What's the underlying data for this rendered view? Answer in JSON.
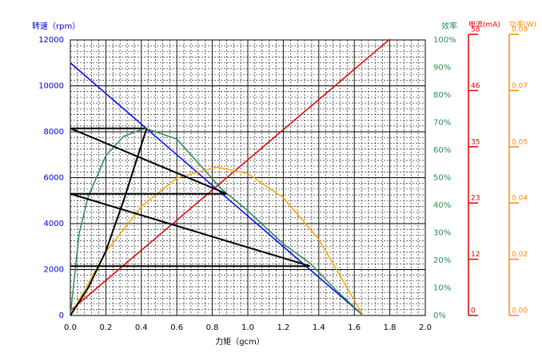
{
  "chart_data": {
    "type": "line",
    "y_title": "转速（rpm）",
    "x_title": "力矩（gcm）",
    "y2_title": "效率",
    "y3_title": "电流(mA)",
    "y4_title": "功率(W)",
    "xlim": [
      0,
      2.0
    ],
    "xticks": [
      {
        "value": 0,
        "label": "0.0"
      },
      0.2,
      0.4,
      0.6,
      0.8,
      {
        "value": 1,
        "label": "1.0"
      },
      1.2,
      1.4,
      1.6,
      1.8,
      {
        "value": 2,
        "label": "2.0"
      }
    ],
    "ylim": [
      0,
      12000
    ],
    "yticks": [
      0,
      2000,
      4000,
      6000,
      8000,
      10000,
      12000
    ],
    "y2lim": [
      0,
      100
    ],
    "y2ticks": [
      {
        "value": 0,
        "label": "0%"
      },
      {
        "value": 10,
        "label": "10%"
      },
      {
        "value": 20,
        "label": "20%"
      },
      {
        "value": 30,
        "label": "30%"
      },
      {
        "value": 40,
        "label": "40%"
      },
      {
        "value": 50,
        "label": "50%"
      },
      {
        "value": 60,
        "label": "60%"
      },
      {
        "value": 70,
        "label": "70%"
      },
      {
        "value": 80,
        "label": "80%"
      },
      {
        "value": 90,
        "label": "90%"
      },
      {
        "value": 100,
        "label": "100%"
      }
    ],
    "y3lim": [
      0,
      58
    ],
    "y3ticks": [
      0,
      {
        "value": 11.6,
        "label": "12"
      },
      {
        "value": 23.2,
        "label": "23"
      },
      {
        "value": 34.8,
        "label": "35"
      },
      {
        "value": 46.4,
        "label": "46"
      },
      58
    ],
    "y4lim": [
      0,
      0.09
    ],
    "y4ticks": [
      {
        "value": 0,
        "label": "0.00"
      },
      {
        "value": 0.018,
        "label": "0.02"
      },
      {
        "value": 0.036,
        "label": "0.04"
      },
      {
        "value": 0.054,
        "label": "0.05"
      },
      {
        "value": 0.072,
        "label": "0.07"
      },
      0.09
    ],
    "grid": true,
    "series": [
      {
        "color": "#0000ff",
        "axis": "y",
        "x": [
          0,
          1.65
        ],
        "values": [
          11000,
          0
        ]
      },
      {
        "color": "#e00000",
        "axis": "y3",
        "x": [
          0,
          1.8
        ],
        "values": [
          1,
          57
        ]
      },
      {
        "color": "#2e8b57",
        "axis": "y2",
        "x": [
          0,
          0.05,
          0.1,
          0.2,
          0.3,
          0.42,
          0.6,
          0.85,
          1.0,
          1.2,
          1.35,
          1.5,
          1.65
        ],
        "values": [
          0,
          30,
          43,
          58,
          65,
          68,
          64,
          46,
          38,
          26,
          19,
          9,
          0
        ]
      },
      {
        "color": "#ffa500",
        "axis": "y4",
        "x": [
          0,
          0.2,
          0.4,
          0.6,
          0.825,
          1.0,
          1.2,
          1.4,
          1.65
        ],
        "values": [
          0,
          0.0203,
          0.0349,
          0.044,
          0.0475,
          0.0454,
          0.0377,
          0.0244,
          0
        ]
      },
      {
        "color": "#000000",
        "axis": "y",
        "x": [
          0,
          0.1,
          0.2,
          0.3,
          0.43
        ],
        "values": [
          0,
          1200,
          2800,
          5000,
          8150
        ]
      },
      {
        "color": "#000000",
        "axis": "y",
        "x": [
          0,
          0.42
        ],
        "values": [
          8150,
          8150
        ]
      },
      {
        "color": "#000000",
        "axis": "y",
        "x": [
          0,
          0.88
        ],
        "values": [
          8150,
          5300
        ]
      },
      {
        "color": "#000000",
        "axis": "y",
        "x": [
          0,
          0.88
        ],
        "values": [
          5300,
          5300
        ]
      },
      {
        "color": "#000000",
        "axis": "y",
        "x": [
          0,
          1.35
        ],
        "values": [
          5300,
          2150
        ]
      },
      {
        "color": "#000000",
        "axis": "y",
        "x": [
          0,
          1.35
        ],
        "values": [
          2150,
          2150
        ]
      }
    ]
  }
}
